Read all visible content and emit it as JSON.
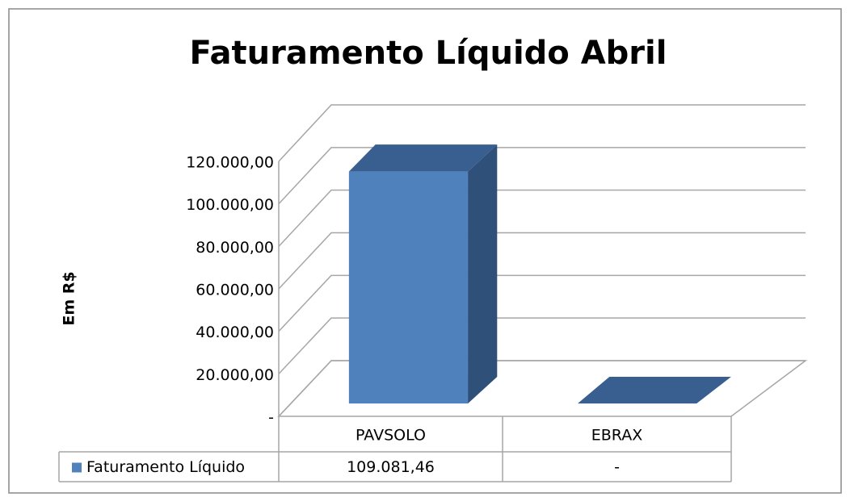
{
  "chart_data": {
    "type": "bar3d",
    "title": "Faturamento Líquido Abril",
    "y_axis_label": "Em R$",
    "categories": [
      "PAVSOLO",
      "EBRAX"
    ],
    "series": [
      {
        "name": "Faturamento Líquido",
        "color": "#4f81bd",
        "values": [
          109081.46,
          0
        ],
        "value_labels": [
          "109.081,46",
          "-"
        ]
      }
    ],
    "ylim": [
      0,
      120000
    ],
    "yticks": [
      {
        "value": 0,
        "label": "-"
      },
      {
        "value": 20000,
        "label": "20.000,00"
      },
      {
        "value": 40000,
        "label": "40.000,00"
      },
      {
        "value": 60000,
        "label": "60.000,00"
      },
      {
        "value": 80000,
        "label": "80.000,00"
      },
      {
        "value": 100000,
        "label": "100.000,00"
      },
      {
        "value": 120000,
        "label": "120.000,00"
      }
    ],
    "grid": true,
    "legend": "data-table"
  }
}
